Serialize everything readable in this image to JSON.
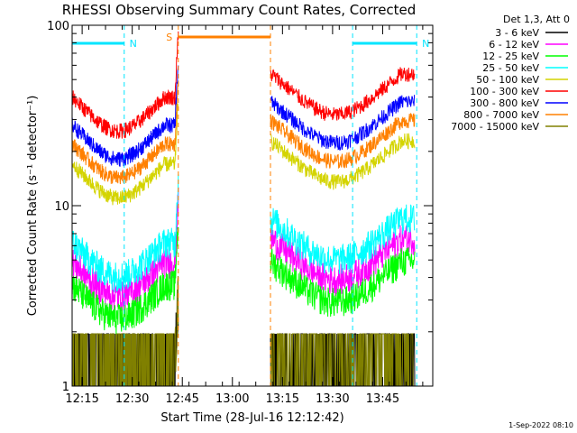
{
  "chart_data": {
    "type": "line",
    "title": "RHESSI Observing Summary Count Rates, Corrected",
    "xlabel": "Start Time (28-Jul-16 12:12:42)",
    "ylabel": "Corrected Count Rate (s⁻¹ detector⁻¹)",
    "yscale": "log",
    "ylim": [
      1,
      100
    ],
    "xlim_minutes": [
      12.2,
      14.0
    ],
    "x_ticks": [
      {
        "label": "12:15",
        "t": 12.25
      },
      {
        "label": "12:30",
        "t": 12.5
      },
      {
        "label": "12:45",
        "t": 12.75
      },
      {
        "label": "13:00",
        "t": 13.0
      },
      {
        "label": "13:15",
        "t": 13.25
      },
      {
        "label": "13:30",
        "t": 13.5
      },
      {
        "label": "13:45",
        "t": 13.75
      }
    ],
    "y_ticks": [
      {
        "label": "1",
        "v": 1
      },
      {
        "label": "10",
        "v": 10
      },
      {
        "label": "100",
        "v": 100
      }
    ],
    "legend_header": "Det 1,3, Att 0",
    "legend_position": "right",
    "series": [
      {
        "name": "3 - 6 keV",
        "color": "#000000",
        "level": 1.4
      },
      {
        "name": "6 - 12 keV",
        "color": "#ff00ff",
        "level": 4.8
      },
      {
        "name": "12 - 25 keV",
        "color": "#00ff00",
        "level": 3.6
      },
      {
        "name": "25 - 50 keV",
        "color": "#00ffff",
        "level": 6.2
      },
      {
        "name": "50 - 100 keV",
        "color": "#d4d400",
        "level": 17
      },
      {
        "name": "100 - 300 keV",
        "color": "#ff0000",
        "level": 40
      },
      {
        "name": "300 - 800 keV",
        "color": "#0000ff",
        "level": 28
      },
      {
        "name": "800 - 7000 keV",
        "color": "#ff8000",
        "level": 22
      },
      {
        "name": "7000 - 15000 keV",
        "color": "#808000",
        "level": 1.5
      }
    ],
    "data_gap": [
      12.73,
      13.19
    ],
    "flags": [
      {
        "label": "N",
        "color": "#00e5ff",
        "start": 12.2,
        "end": 12.46
      },
      {
        "label": "N",
        "color": "#00e5ff",
        "start": 13.6,
        "end": 13.92
      },
      {
        "label": "S",
        "color": "#ff8000",
        "start": 12.73,
        "end": 13.19
      }
    ],
    "footer": "1-Sep-2022 08:10"
  }
}
